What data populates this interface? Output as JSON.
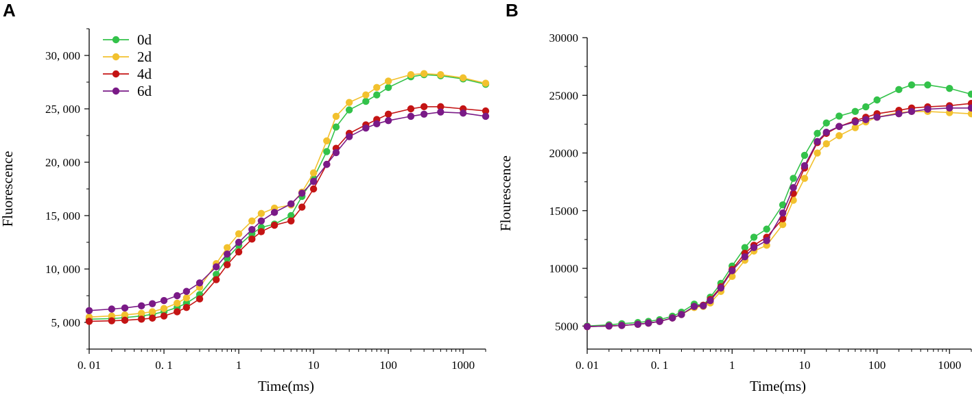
{
  "chart_data": [
    {
      "panel": "A",
      "type": "line",
      "title": "",
      "xlabel": "Time(ms)",
      "ylabel": "Fluorescence",
      "xscale": "log",
      "xlim": [
        0.01,
        2000
      ],
      "ylim": [
        2500,
        32500
      ],
      "xticks": [
        0.01,
        0.1,
        1,
        10,
        100,
        1000
      ],
      "xtick_labels": [
        "0. 01",
        "0. 1",
        "1",
        "10",
        "100",
        "1000"
      ],
      "yticks": [
        5000,
        10000,
        15000,
        20000,
        25000,
        30000
      ],
      "ytick_labels": [
        "5, 000",
        "10, 000",
        "15, 000",
        "20, 000",
        "25, 000",
        "30, 000"
      ],
      "legend": "top-left",
      "x": [
        0.01,
        0.02,
        0.03,
        0.05,
        0.07,
        0.1,
        0.15,
        0.2,
        0.3,
        0.5,
        0.7,
        1,
        1.5,
        2,
        3,
        5,
        7,
        10,
        15,
        20,
        30,
        50,
        70,
        100,
        200,
        300,
        500,
        1000,
        2000
      ],
      "series": [
        {
          "name": "0d",
          "color": "#33c24a",
          "values": [
            5300,
            5350,
            5450,
            5600,
            5750,
            6000,
            6400,
            6800,
            7600,
            9500,
            11000,
            12200,
            13300,
            13900,
            14200,
            15000,
            16800,
            18500,
            21000,
            23300,
            24900,
            25700,
            26300,
            27000,
            28000,
            28200,
            28100,
            27800,
            27300
          ]
        },
        {
          "name": "2d",
          "color": "#f2c12e",
          "values": [
            5500,
            5600,
            5700,
            5850,
            6000,
            6300,
            6800,
            7300,
            8300,
            10500,
            12000,
            13300,
            14500,
            15200,
            15700,
            16000,
            17200,
            19000,
            22000,
            24300,
            25600,
            26300,
            27000,
            27600,
            28200,
            28300,
            28200,
            27900,
            27400
          ]
        },
        {
          "name": "4d",
          "color": "#c41414",
          "values": [
            5100,
            5150,
            5200,
            5300,
            5400,
            5600,
            6000,
            6400,
            7200,
            9000,
            10400,
            11600,
            12800,
            13500,
            14100,
            14500,
            15800,
            17500,
            19800,
            21300,
            22700,
            23500,
            24000,
            24500,
            25000,
            25200,
            25200,
            25000,
            24800
          ]
        },
        {
          "name": "6d",
          "color": "#7a1a87",
          "values": [
            6100,
            6250,
            6350,
            6550,
            6750,
            7050,
            7500,
            7900,
            8700,
            10200,
            11400,
            12500,
            13700,
            14500,
            15300,
            16100,
            17100,
            18200,
            19800,
            20900,
            22400,
            23200,
            23600,
            23900,
            24300,
            24500,
            24700,
            24600,
            24300
          ]
        }
      ]
    },
    {
      "panel": "B",
      "type": "line",
      "title": "",
      "xlabel": "Time(ms)",
      "ylabel": "Flourescence",
      "xscale": "log",
      "xlim": [
        0.01,
        2000
      ],
      "ylim": [
        3000,
        30000
      ],
      "xticks": [
        0.01,
        0.1,
        1,
        10,
        100,
        1000
      ],
      "xtick_labels": [
        "0. 01",
        "0. 1",
        "1",
        "10",
        "100",
        "1000"
      ],
      "yticks": [
        5000,
        10000,
        15000,
        20000,
        25000,
        30000
      ],
      "ytick_labels": [
        "5000",
        "10000",
        "15000",
        "20000",
        "25000",
        "30000"
      ],
      "legend": "none",
      "x": [
        0.01,
        0.02,
        0.03,
        0.05,
        0.07,
        0.1,
        0.15,
        0.2,
        0.3,
        0.4,
        0.5,
        0.7,
        1,
        1.5,
        2,
        3,
        5,
        7,
        10,
        15,
        20,
        30,
        50,
        70,
        100,
        200,
        300,
        500,
        1000,
        2000
      ],
      "series": [
        {
          "name": "0d",
          "color": "#33c24a",
          "values": [
            5000,
            5100,
            5200,
            5300,
            5400,
            5550,
            5850,
            6200,
            6900,
            6800,
            7500,
            8700,
            10200,
            11800,
            12700,
            13400,
            15500,
            17800,
            19800,
            21700,
            22600,
            23200,
            23600,
            24000,
            24600,
            25500,
            25900,
            25900,
            25600,
            25100
          ]
        },
        {
          "name": "2d",
          "color": "#f2c12e",
          "values": [
            4950,
            5000,
            5050,
            5150,
            5250,
            5400,
            5700,
            6000,
            6600,
            6700,
            7000,
            8000,
            9300,
            10700,
            11500,
            12000,
            13800,
            15900,
            17800,
            20000,
            20800,
            21500,
            22200,
            22700,
            23100,
            23500,
            23600,
            23600,
            23500,
            23400
          ]
        },
        {
          "name": "4d",
          "color": "#c41414",
          "values": [
            4950,
            5000,
            5050,
            5150,
            5250,
            5400,
            5700,
            6000,
            6700,
            6800,
            7300,
            8400,
            9900,
            11300,
            12000,
            12700,
            14300,
            16500,
            18700,
            20900,
            21700,
            22300,
            22800,
            23100,
            23400,
            23700,
            23900,
            24000,
            24100,
            24300
          ]
        },
        {
          "name": "6d",
          "color": "#7a1a87",
          "values": [
            4950,
            5000,
            5050,
            5150,
            5250,
            5400,
            5700,
            6000,
            6700,
            6750,
            7200,
            8300,
            9800,
            11000,
            11800,
            12400,
            14800,
            17000,
            18900,
            21000,
            21800,
            22300,
            22700,
            22900,
            23100,
            23400,
            23600,
            23800,
            23900,
            23900
          ]
        }
      ]
    }
  ]
}
